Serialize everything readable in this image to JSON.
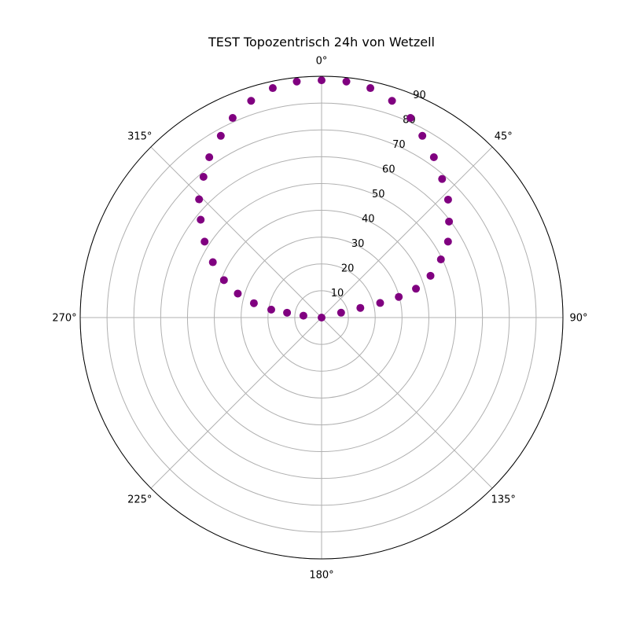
{
  "chart_data": {
    "type": "scatter",
    "projection": "polar",
    "title": "TEST Topozentrisch 24h von Wetzell",
    "theta_zero": "top",
    "theta_direction": "clockwise",
    "theta_ticks": [
      "0°",
      "45°",
      "90°",
      "135°",
      "180°",
      "225°",
      "270°",
      "315°"
    ],
    "theta_tick_values": [
      0,
      45,
      90,
      135,
      180,
      225,
      270,
      315
    ],
    "r_ticks": [
      "10",
      "20",
      "30",
      "40",
      "50",
      "60",
      "70",
      "80",
      "90"
    ],
    "r_tick_values": [
      10,
      20,
      30,
      40,
      50,
      60,
      70,
      80,
      90
    ],
    "rlim": [
      0,
      90
    ],
    "grid": true,
    "marker_color": "#800080",
    "series": [
      {
        "theta": [
          0,
          76,
          76,
          76,
          75,
          73,
          69,
          64,
          59,
          53,
          47,
          41,
          35,
          29,
          24,
          18,
          12,
          6,
          0,
          -6,
          -12,
          -18,
          -24,
          -29,
          -35,
          -40,
          -46,
          -51,
          -57,
          -63,
          -69,
          -74,
          -78,
          -81,
          -82,
          -84
        ],
        "r": [
          0,
          7.5,
          14.9,
          22.5,
          29.8,
          36.8,
          43.5,
          49.5,
          55.0,
          59.5,
          64.5,
          68.5,
          73.0,
          77.5,
          81.5,
          85.0,
          87.5,
          88.5,
          88.5,
          88.5,
          87.5,
          85.0,
          81.5,
          77.5,
          73.0,
          68.5,
          63.5,
          58.0,
          52.0,
          45.5,
          39.0,
          32.5,
          25.8,
          19.0,
          13.0,
          6.8
        ]
      }
    ]
  }
}
